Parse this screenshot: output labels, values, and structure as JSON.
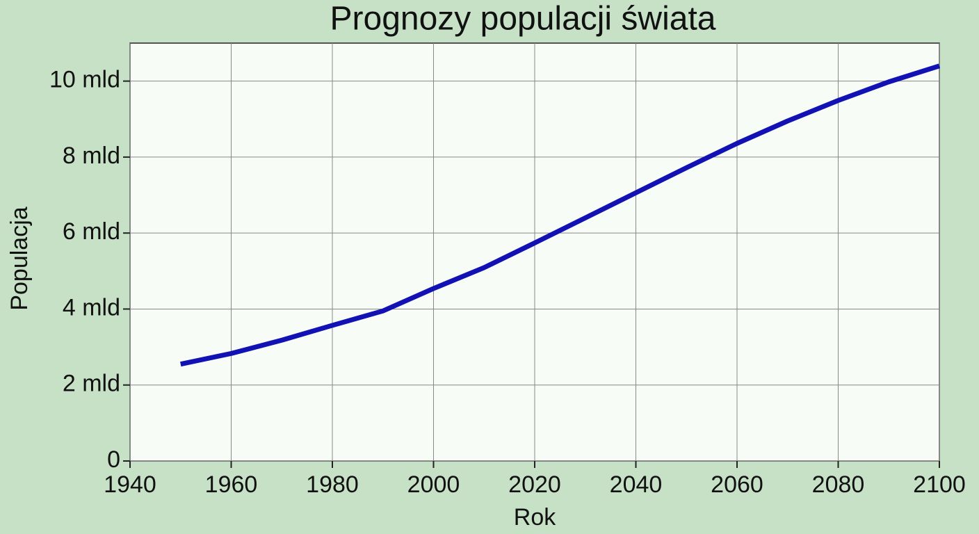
{
  "chart_data": {
    "type": "line",
    "title": "Prognozy populacji świata",
    "x_label": "Rok",
    "y_label": "Populacja",
    "x": [
      1950,
      1960,
      1970,
      1980,
      1990,
      2000,
      2010,
      2020,
      2030,
      2040,
      2050,
      2060,
      2070,
      2080,
      2090,
      2100
    ],
    "series": [
      {
        "name": "Populacja",
        "color": "#1212b4",
        "values": [
          2.55,
          2.83,
          3.18,
          3.57,
          3.95,
          4.54,
          5.09,
          5.74,
          6.4,
          7.06,
          7.72,
          8.36,
          8.95,
          9.49,
          9.98,
          10.4
        ]
      }
    ],
    "xlim": [
      1940,
      2100
    ],
    "xticks": [
      1940,
      1960,
      1980,
      2000,
      2020,
      2040,
      2060,
      2080,
      2100
    ],
    "ylim": [
      0,
      11
    ],
    "yticks": [
      0,
      {
        "value": 2,
        "label": "2 mld"
      },
      {
        "value": 4,
        "label": "4 mld"
      },
      {
        "value": 6,
        "label": "6 mld"
      },
      {
        "value": 8,
        "label": "8 mld"
      },
      {
        "value": 10,
        "label": "10 mld"
      }
    ],
    "grid": true
  }
}
